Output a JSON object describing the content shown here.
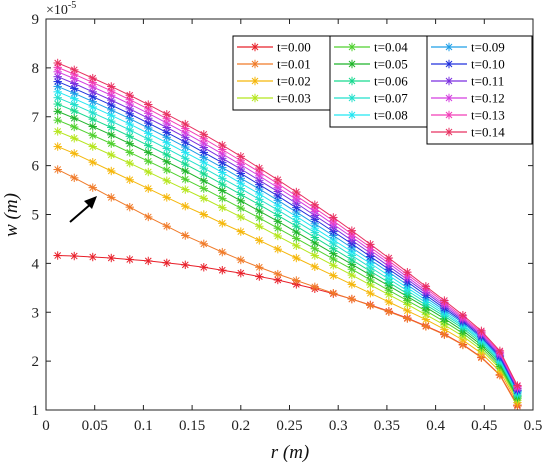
{
  "chart_data": {
    "type": "line",
    "xlabel": "r (m)",
    "ylabel": "w (m)",
    "y_exponent_label": "×10",
    "y_exponent_power": "-5",
    "xlim": [
      0,
      0.5
    ],
    "ylim": [
      1,
      9
    ],
    "xticks": [
      "0",
      "0.05",
      "0.1",
      "0.15",
      "0.2",
      "0.25",
      "0.3",
      "0.35",
      "0.4",
      "0.45",
      "0.5"
    ],
    "yticks": [
      "1",
      "2",
      "3",
      "4",
      "5",
      "6",
      "7",
      "8",
      "9"
    ],
    "grid": false,
    "legend_position": "top-right",
    "marker": "asterisk",
    "annotation": "arrow indicating increasing t",
    "x": [
      0.012,
      0.029,
      0.048,
      0.067,
      0.086,
      0.105,
      0.124,
      0.143,
      0.162,
      0.181,
      0.2,
      0.219,
      0.238,
      0.257,
      0.276,
      0.295,
      0.314,
      0.333,
      0.352,
      0.371,
      0.39,
      0.409,
      0.428,
      0.447,
      0.466,
      0.484
    ],
    "series": [
      {
        "name": "t=0.00",
        "color": "#e8202a",
        "values": [
          4.16,
          4.15,
          4.13,
          4.11,
          4.08,
          4.05,
          4.01,
          3.97,
          3.92,
          3.86,
          3.8,
          3.73,
          3.66,
          3.57,
          3.48,
          3.38,
          3.27,
          3.15,
          3.02,
          2.88,
          2.72,
          2.55,
          2.34,
          2.08,
          1.72,
          1.1
        ]
      },
      {
        "name": "t=0.01",
        "color": "#f07a28",
        "values": [
          5.92,
          5.75,
          5.55,
          5.35,
          5.15,
          4.95,
          4.76,
          4.57,
          4.4,
          4.23,
          4.07,
          3.92,
          3.78,
          3.65,
          3.52,
          3.39,
          3.27,
          3.14,
          3.01,
          2.87,
          2.71,
          2.54,
          2.33,
          2.07,
          1.71,
          1.08
        ]
      },
      {
        "name": "t=0.02",
        "color": "#f5b70a",
        "values": [
          6.39,
          6.25,
          6.07,
          5.89,
          5.71,
          5.53,
          5.35,
          5.17,
          5.0,
          4.82,
          4.65,
          4.47,
          4.29,
          4.11,
          3.93,
          3.75,
          3.57,
          3.39,
          3.21,
          3.03,
          2.85,
          2.65,
          2.43,
          2.16,
          1.79,
          1.15
        ]
      },
      {
        "name": "t=0.03",
        "color": "#b5e61d",
        "values": [
          6.7,
          6.56,
          6.39,
          6.22,
          6.05,
          5.87,
          5.69,
          5.51,
          5.33,
          5.14,
          4.95,
          4.76,
          4.56,
          4.36,
          4.16,
          3.96,
          3.76,
          3.56,
          3.36,
          3.16,
          2.95,
          2.74,
          2.51,
          2.23,
          1.85,
          1.2
        ]
      },
      {
        "name": "t=0.04",
        "color": "#4fd12e",
        "values": [
          6.93,
          6.79,
          6.62,
          6.45,
          6.27,
          6.09,
          5.91,
          5.72,
          5.53,
          5.33,
          5.13,
          4.93,
          4.72,
          4.51,
          4.3,
          4.09,
          3.88,
          3.66,
          3.45,
          3.24,
          3.03,
          2.81,
          2.57,
          2.28,
          1.89,
          1.24
        ]
      },
      {
        "name": "t=0.05",
        "color": "#1fb52a",
        "values": [
          7.11,
          6.97,
          6.8,
          6.63,
          6.45,
          6.27,
          6.08,
          5.89,
          5.69,
          5.49,
          5.28,
          5.07,
          4.86,
          4.64,
          4.42,
          4.2,
          3.98,
          3.76,
          3.54,
          3.32,
          3.1,
          2.87,
          2.62,
          2.33,
          1.93,
          1.27
        ]
      },
      {
        "name": "t=0.06",
        "color": "#17d98f",
        "values": [
          7.26,
          7.12,
          6.95,
          6.78,
          6.6,
          6.41,
          6.22,
          6.03,
          5.83,
          5.62,
          5.41,
          5.2,
          4.98,
          4.76,
          4.53,
          4.3,
          4.07,
          3.84,
          3.61,
          3.38,
          3.15,
          2.92,
          2.67,
          2.37,
          1.97,
          1.3
        ]
      },
      {
        "name": "t=0.07",
        "color": "#22e0cc",
        "values": [
          7.39,
          7.25,
          7.08,
          6.91,
          6.73,
          6.54,
          6.35,
          6.15,
          5.95,
          5.74,
          5.53,
          5.31,
          5.09,
          4.86,
          4.63,
          4.4,
          4.16,
          3.92,
          3.68,
          3.44,
          3.2,
          2.96,
          2.71,
          2.41,
          2.0,
          1.33
        ]
      },
      {
        "name": "t=0.08",
        "color": "#21e6f2",
        "values": [
          7.51,
          7.37,
          7.2,
          7.03,
          6.85,
          6.66,
          6.47,
          6.27,
          6.07,
          5.86,
          5.64,
          5.42,
          5.19,
          4.96,
          4.72,
          4.48,
          4.24,
          4.0,
          3.75,
          3.5,
          3.25,
          3.0,
          2.74,
          2.44,
          2.03,
          1.36
        ]
      },
      {
        "name": "t=0.09",
        "color": "#1e9fe8",
        "values": [
          7.62,
          7.48,
          7.31,
          7.14,
          6.96,
          6.77,
          6.58,
          6.38,
          6.17,
          5.96,
          5.74,
          5.52,
          5.29,
          5.05,
          4.81,
          4.57,
          4.32,
          4.07,
          3.82,
          3.56,
          3.3,
          3.04,
          2.78,
          2.47,
          2.06,
          1.38
        ]
      },
      {
        "name": "t=0.10",
        "color": "#2030dd",
        "values": [
          7.72,
          7.58,
          7.41,
          7.24,
          7.06,
          6.87,
          6.68,
          6.48,
          6.27,
          6.06,
          5.84,
          5.61,
          5.38,
          5.14,
          4.9,
          4.65,
          4.4,
          4.14,
          3.88,
          3.62,
          3.35,
          3.08,
          2.81,
          2.5,
          2.09,
          1.4
        ]
      },
      {
        "name": "t=0.11",
        "color": "#7a2fe0",
        "values": [
          7.82,
          7.68,
          7.51,
          7.34,
          7.16,
          6.97,
          6.78,
          6.58,
          6.37,
          6.15,
          5.93,
          5.7,
          5.47,
          5.23,
          4.98,
          4.73,
          4.47,
          4.21,
          3.94,
          3.67,
          3.4,
          3.12,
          2.84,
          2.53,
          2.12,
          1.43
        ]
      },
      {
        "name": "t=0.12",
        "color": "#d43de0",
        "values": [
          7.92,
          7.78,
          7.61,
          7.44,
          7.26,
          7.07,
          6.87,
          6.67,
          6.46,
          6.24,
          6.02,
          5.79,
          5.55,
          5.31,
          5.06,
          4.8,
          4.54,
          4.27,
          4.0,
          3.72,
          3.44,
          3.16,
          2.87,
          2.56,
          2.15,
          1.45
        ]
      },
      {
        "name": "t=0.13",
        "color": "#f23db8",
        "values": [
          8.01,
          7.87,
          7.7,
          7.53,
          7.35,
          7.16,
          6.96,
          6.76,
          6.55,
          6.33,
          6.1,
          5.87,
          5.63,
          5.38,
          5.13,
          4.87,
          4.6,
          4.33,
          4.05,
          3.77,
          3.49,
          3.2,
          2.9,
          2.59,
          2.18,
          1.48
        ]
      },
      {
        "name": "t=0.14",
        "color": "#e83060",
        "values": [
          8.1,
          7.96,
          7.79,
          7.62,
          7.44,
          7.25,
          7.05,
          6.85,
          6.64,
          6.42,
          6.19,
          5.95,
          5.71,
          5.46,
          5.2,
          4.94,
          4.67,
          4.39,
          4.11,
          3.82,
          3.53,
          3.24,
          2.94,
          2.62,
          2.21,
          1.5
        ]
      }
    ]
  }
}
